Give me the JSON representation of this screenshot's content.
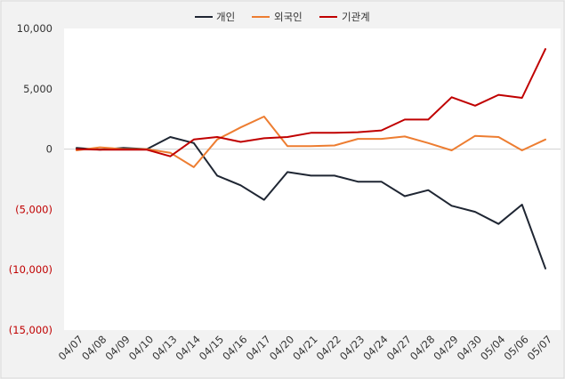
{
  "chart_data": {
    "type": "line",
    "title": "",
    "xlabel": "",
    "ylabel": "",
    "x": [
      "04/07",
      "04/08",
      "04/09",
      "04/10",
      "04/13",
      "04/14",
      "04/15",
      "04/16",
      "04/17",
      "04/20",
      "04/21",
      "04/22",
      "04/23",
      "04/24",
      "04/27",
      "04/28",
      "04/29",
      "04/30",
      "05/04",
      "05/06",
      "05/07"
    ],
    "ylim": [
      -15000,
      10000
    ],
    "y_ticks": [
      {
        "value": 10000,
        "label": "10,000",
        "color": "#333333"
      },
      {
        "value": 5000,
        "label": "5,000",
        "color": "#333333"
      },
      {
        "value": 0,
        "label": "0",
        "color": "#333333"
      },
      {
        "value": -5000,
        "label": "(5,000)",
        "color": "#c00000"
      },
      {
        "value": -10000,
        "label": "(10,000)",
        "color": "#c00000"
      },
      {
        "value": -15000,
        "label": "(15,000)",
        "color": "#c00000"
      }
    ],
    "zero_line": true,
    "grid": false,
    "legend_position": "top-center",
    "series": [
      {
        "name": "개인",
        "color": "#1f2633",
        "values": [
          100,
          -50,
          100,
          0,
          1000,
          500,
          -2200,
          -3000,
          -4200,
          -1900,
          -2200,
          -2200,
          -2700,
          -2700,
          -3900,
          -3400,
          -4700,
          -5200,
          -6200,
          -4600,
          -9900
        ]
      },
      {
        "name": "외국인",
        "color": "#ed7d31",
        "values": [
          -100,
          150,
          0,
          0,
          -300,
          -1500,
          800,
          1800,
          2700,
          250,
          250,
          300,
          850,
          850,
          1050,
          500,
          -100,
          1100,
          1000,
          -100,
          800
        ]
      },
      {
        "name": "기관계",
        "color": "#c00000",
        "values": [
          0,
          -50,
          -50,
          -50,
          -600,
          800,
          1000,
          600,
          900,
          1000,
          1350,
          1350,
          1400,
          1550,
          2450,
          2450,
          4300,
          3600,
          4500,
          4250,
          8300
        ]
      }
    ]
  }
}
